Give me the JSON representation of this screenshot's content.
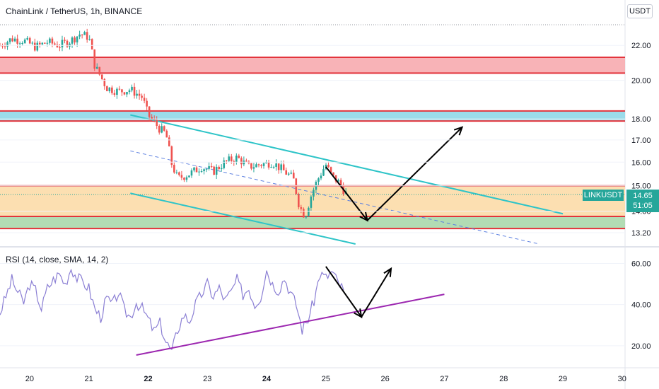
{
  "header": {
    "title": "ChainLink / TetherUS, 1h, BINANCE",
    "currency": "USDT"
  },
  "indicator": {
    "label": "RSI (14, close, SMA, 14, 2)"
  },
  "price_tag": {
    "symbol": "LINKUSDT",
    "price": "14.65",
    "countdown": "51:05"
  },
  "colors": {
    "candle_up": "#26a69a",
    "candle_down": "#ef5350",
    "resistance_zone": "#f7a6aa",
    "blue_zone": "#8ad6e6",
    "support_zone": "#fbd9a3",
    "zone_border": "#e3343c",
    "channel": "#2ec4c8",
    "rsi_line": "#8b7fd4",
    "rsi_trend": "#9c27b0",
    "arrow": "#000000"
  },
  "chart_data": [
    {
      "type": "candlestick",
      "title": "ChainLink / TetherUS, 1h, BINANCE",
      "x_ticks": [
        "20",
        "21",
        "22",
        "23",
        "24",
        "25",
        "26",
        "27",
        "28",
        "29",
        "30"
      ],
      "y_ticks": [
        22.0,
        20.0,
        18.0,
        17.0,
        16.0,
        15.0,
        14.0,
        13.2
      ],
      "y_scale": "log",
      "ylim": [
        12.75,
        23.5
      ],
      "xlim": [
        19.5,
        30.05
      ],
      "last_price": 14.65,
      "series": [
        {
          "values_x": [
            19.5,
            19.7,
            19.9,
            20.1,
            20.3,
            20.5,
            20.7,
            20.85,
            21.0,
            21.1,
            21.3,
            21.5,
            21.7,
            21.9,
            22.0,
            22.2,
            22.3,
            22.4,
            22.5,
            22.7,
            22.9,
            23.1,
            23.3,
            23.5,
            23.7,
            23.9,
            24.1,
            24.3,
            24.45,
            24.55,
            24.65,
            24.75,
            24.85,
            25.0,
            25.1,
            25.2,
            25.35
          ],
          "values_y": [
            22.0,
            22.4,
            22.3,
            21.9,
            22.2,
            22.0,
            22.3,
            22.7,
            22.5,
            20.8,
            19.6,
            19.4,
            19.5,
            19.1,
            18.2,
            17.5,
            17.3,
            15.9,
            15.3,
            15.5,
            15.8,
            15.6,
            16.0,
            16.2,
            15.8,
            15.9,
            16.0,
            15.6,
            15.3,
            14.2,
            13.8,
            14.6,
            15.2,
            15.9,
            15.4,
            15.2,
            14.65
          ]
        }
      ],
      "zones": [
        {
          "name": "resistance",
          "from": 20.4,
          "to": 21.3
        },
        {
          "name": "blue",
          "from": 17.9,
          "to": 18.4
        },
        {
          "name": "support",
          "from": 13.8,
          "to": 15.0
        },
        {
          "name": "support-low",
          "from": 13.35,
          "to": 13.8
        }
      ],
      "annotations": [
        {
          "type": "channel-upper",
          "from": [
            21.7,
            18.2
          ],
          "to": [
            29.0,
            13.9
          ]
        },
        {
          "type": "channel-mid-dashed",
          "from": [
            21.7,
            16.5
          ],
          "to": [
            28.6,
            12.8
          ]
        },
        {
          "type": "channel-lower",
          "from": [
            21.7,
            14.7
          ],
          "to": [
            25.5,
            12.8
          ]
        },
        {
          "type": "arrow-path",
          "points": [
            [
              25.0,
              15.8
            ],
            [
              25.7,
              13.65
            ],
            [
              27.3,
              17.6
            ]
          ]
        }
      ]
    },
    {
      "type": "line",
      "title": "RSI (14, close, SMA, 14, 2)",
      "y_ticks": [
        60.0,
        40.0,
        20.0
      ],
      "ylim": [
        10,
        66
      ],
      "xlim": [
        19.5,
        30.05
      ],
      "series": [
        {
          "values_x": [
            19.5,
            19.6,
            19.7,
            19.8,
            19.9,
            20.0,
            20.1,
            20.2,
            20.3,
            20.4,
            20.5,
            20.6,
            20.7,
            20.8,
            20.9,
            21.0,
            21.1,
            21.2,
            21.3,
            21.4,
            21.5,
            21.6,
            21.7,
            21.8,
            21.9,
            22.0,
            22.1,
            22.2,
            22.3,
            22.4,
            22.5,
            22.6,
            22.7,
            22.8,
            22.9,
            23.0,
            23.1,
            23.2,
            23.3,
            23.4,
            23.5,
            23.6,
            23.7,
            23.8,
            23.9,
            24.0,
            24.1,
            24.2,
            24.3,
            24.4,
            24.5,
            24.6,
            24.7,
            24.8,
            24.9,
            25.0,
            25.1,
            25.2,
            25.3
          ],
          "values_y": [
            36,
            44,
            52,
            46,
            41,
            50,
            47,
            38,
            48,
            52,
            55,
            50,
            58,
            53,
            51,
            48,
            38,
            34,
            43,
            40,
            46,
            37,
            34,
            41,
            38,
            33,
            27,
            31,
            22,
            17,
            28,
            35,
            32,
            40,
            45,
            50,
            44,
            48,
            42,
            46,
            52,
            45,
            48,
            40,
            44,
            57,
            50,
            47,
            53,
            46,
            40,
            28,
            33,
            42,
            55,
            53,
            56,
            51,
            47
          ]
        }
      ],
      "annotations": [
        {
          "type": "trendline",
          "from": [
            21.8,
            15.5
          ],
          "to": [
            27.0,
            45.0
          ]
        },
        {
          "type": "arrow-path",
          "points": [
            [
              25.0,
              58.5
            ],
            [
              25.6,
              34.0
            ],
            [
              26.1,
              57.5
            ]
          ]
        }
      ]
    }
  ]
}
